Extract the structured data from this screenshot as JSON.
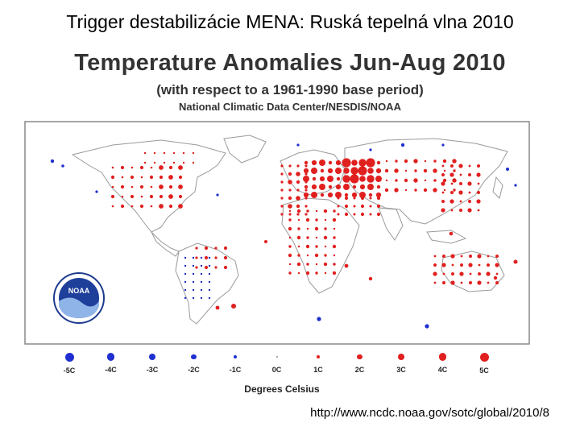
{
  "slide": {
    "title": "Trigger destabilizácie MENA: Ruská tepelná vlna 2010",
    "source_url": "http://www.ncdc.noaa.gov/sotc/global/2010/8"
  },
  "figure": {
    "title": "Temperature Anomalies Jun-Aug 2010",
    "subtitle": "(with respect to a 1961-1990 base period)",
    "source": "National Climatic Data Center/NESDIS/NOAA",
    "logo_text": "NOAA"
  },
  "colors": {
    "warm": "#e0201f",
    "cold": "#1f2fd0",
    "land_outline": "#9a9a9a",
    "frame": "#888888"
  },
  "legend": {
    "title": "Degrees Celsius",
    "items": [
      {
        "label": "-5C",
        "value": -5,
        "color": "#1f2fd0"
      },
      {
        "label": "-4C",
        "value": -4,
        "color": "#1f2fd0"
      },
      {
        "label": "-3C",
        "value": -3,
        "color": "#1f2fd0"
      },
      {
        "label": "-2C",
        "value": -2,
        "color": "#1f2fd0"
      },
      {
        "label": "-1C",
        "value": -1,
        "color": "#1f2fd0"
      },
      {
        "label": "0C",
        "value": 0,
        "color": "#888888"
      },
      {
        "label": "1C",
        "value": 1,
        "color": "#e0201f"
      },
      {
        "label": "2C",
        "value": 2,
        "color": "#e0201f"
      },
      {
        "label": "3C",
        "value": 3,
        "color": "#e0201f"
      },
      {
        "label": "4C",
        "value": 4,
        "color": "#e0201f"
      },
      {
        "label": "5C",
        "value": 5,
        "color": "#e0201f"
      }
    ]
  }
}
